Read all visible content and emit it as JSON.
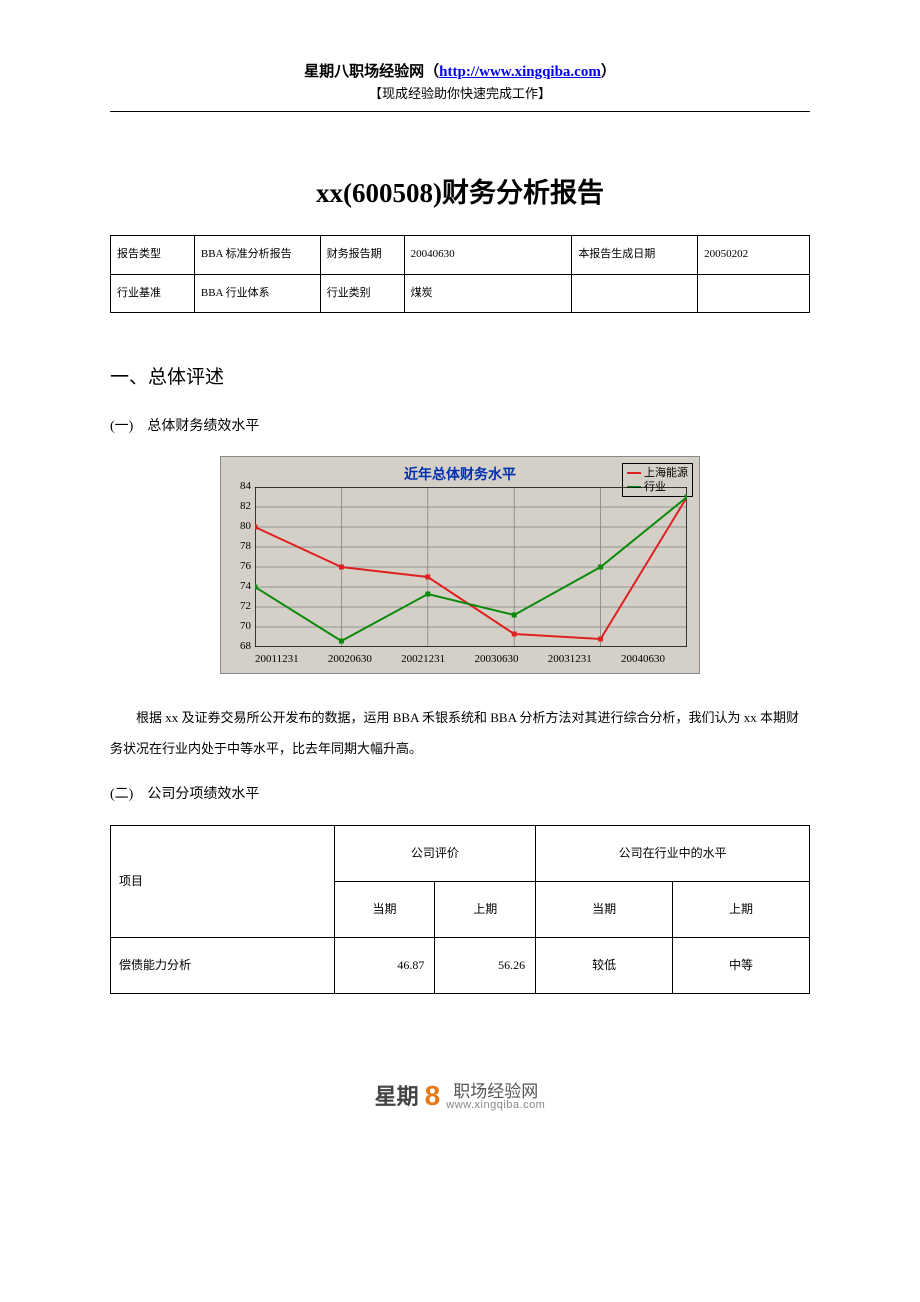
{
  "header": {
    "site_name": "星期八职场经验网（",
    "site_url": "http://www.xingqiba.com",
    "site_name_close": "）",
    "subtitle": "【现成经验助你快速完成工作】"
  },
  "doc_title": "xx(600508)财务分析报告",
  "info_table": {
    "rows": [
      [
        "报告类型",
        "BBA 标准分析报告",
        "财务报告期",
        "20040630",
        "本报告生成日期",
        "20050202"
      ],
      [
        "行业基准",
        "BBA 行业体系",
        "行业类别",
        "煤炭",
        "",
        ""
      ]
    ],
    "col_widths": [
      "12%",
      "18%",
      "12%",
      "24%",
      "18%",
      "16%"
    ]
  },
  "section1": {
    "heading": "一、总体评述",
    "sub1": "(一)　总体财务绩效水平",
    "sub2": "(二)　公司分项绩效水平"
  },
  "chart": {
    "title": "近年总体财务水平",
    "legend": [
      {
        "label": "上海能源",
        "color": "#e02020"
      },
      {
        "label": "行业",
        "color": "#0a8a0a"
      }
    ],
    "ymin": 68,
    "ymax": 84,
    "ystep": 2,
    "x_labels": [
      "20011231",
      "20020630",
      "20021231",
      "20030630",
      "20031231",
      "20040630"
    ],
    "series": [
      {
        "name": "上海能源",
        "color": "#e02020",
        "values": [
          80.0,
          76.0,
          75.0,
          69.3,
          68.8,
          83.0
        ]
      },
      {
        "name": "行业",
        "color": "#0a8a0a",
        "values": [
          74.0,
          68.6,
          73.3,
          71.2,
          76.0,
          83.0
        ]
      }
    ],
    "grid_color": "#808080",
    "bg_color": "#d4d0c8",
    "axis_color": "#000000"
  },
  "paragraph1": "根据 xx 及证券交易所公开发布的数据，运用 BBA 禾银系统和 BBA 分析方法对其进行综合分析，我们认为 xx 本期财务状况在行业内处于中等水平，比去年同期大幅升高。",
  "perf_table": {
    "header_top": [
      "项目",
      "公司评价",
      "公司在行业中的水平"
    ],
    "header_sub": [
      "当期",
      "上期",
      "当期",
      "上期"
    ],
    "rows": [
      {
        "name": "偿债能力分析",
        "v1": "46.87",
        "v2": "56.26",
        "v3": "较低",
        "v4": "中等"
      }
    ]
  },
  "footer": {
    "brand1": "星期",
    "brand_num": "8",
    "brand2": "职场经验网",
    "brand_url": "www.xingqiba.com"
  }
}
